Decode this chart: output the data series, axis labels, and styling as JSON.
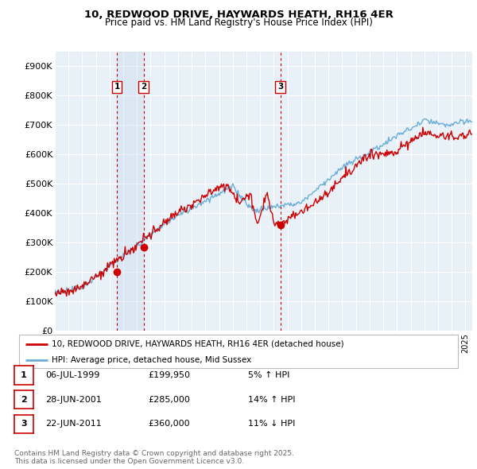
{
  "title_line1": "10, REDWOOD DRIVE, HAYWARDS HEATH, RH16 4ER",
  "title_line2": "Price paid vs. HM Land Registry's House Price Index (HPI)",
  "ylim": [
    0,
    950000
  ],
  "yticks": [
    0,
    100000,
    200000,
    300000,
    400000,
    500000,
    600000,
    700000,
    800000,
    900000
  ],
  "ytick_labels": [
    "£0",
    "£100K",
    "£200K",
    "£300K",
    "£400K",
    "£500K",
    "£600K",
    "£700K",
    "£800K",
    "£900K"
  ],
  "background_color": "#ffffff",
  "plot_bg_color": "#e8f0f8",
  "grid_color": "#ffffff",
  "line_color_hpi": "#6aaed6",
  "line_color_price": "#cc0000",
  "shade_color": "#c8d8ed",
  "legend_label_price": "10, REDWOOD DRIVE, HAYWARDS HEATH, RH16 4ER (detached house)",
  "legend_label_hpi": "HPI: Average price, detached house, Mid Sussex",
  "sale_points": [
    {
      "label": "1",
      "date_x": 1999.54,
      "price": 199950,
      "pct": "5%",
      "dir": "↑",
      "date_str": "06-JUL-1999",
      "price_str": "£199,950"
    },
    {
      "label": "2",
      "date_x": 2001.49,
      "price": 285000,
      "pct": "14%",
      "dir": "↑",
      "date_str": "28-JUN-2001",
      "price_str": "£285,000"
    },
    {
      "label": "3",
      "date_x": 2011.48,
      "price": 360000,
      "pct": "11%",
      "dir": "↓",
      "date_str": "22-JUN-2011",
      "price_str": "£360,000"
    }
  ],
  "vline_color": "#cc0000",
  "footer_text": "Contains HM Land Registry data © Crown copyright and database right 2025.\nThis data is licensed under the Open Government Licence v3.0.",
  "xlim_start": 1995.0,
  "xlim_end": 2025.5
}
